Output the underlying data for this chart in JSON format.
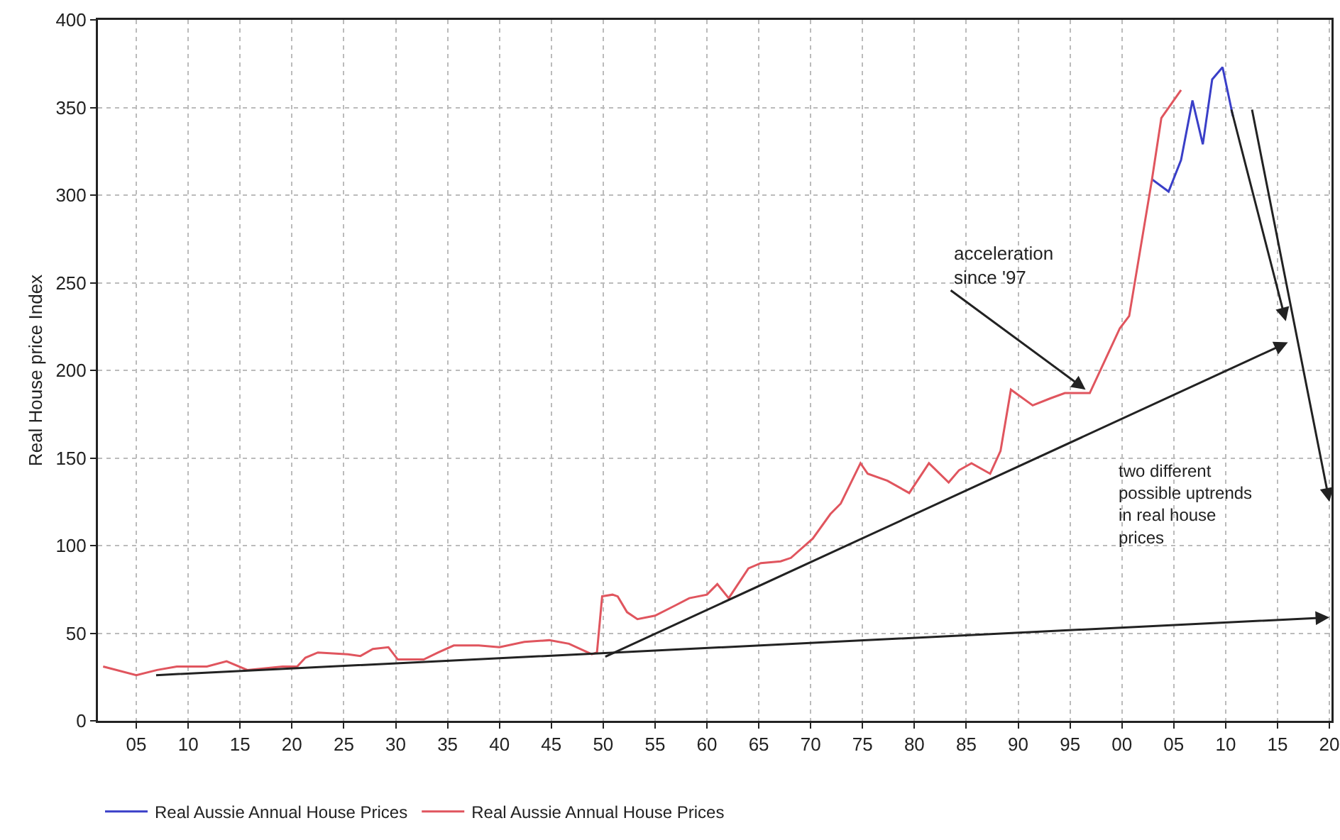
{
  "chart_data": {
    "type": "line",
    "ylabel": "Real House price Index",
    "xlim": [
      1901.3,
      2020.2
    ],
    "xticks": [
      {
        "value": 1905,
        "label": "05"
      },
      {
        "value": 1910,
        "label": "10"
      },
      {
        "value": 1915,
        "label": "15"
      },
      {
        "value": 1920,
        "label": "20"
      },
      {
        "value": 1925,
        "label": "25"
      },
      {
        "value": 1930,
        "label": "30"
      },
      {
        "value": 1935,
        "label": "35"
      },
      {
        "value": 1940,
        "label": "40"
      },
      {
        "value": 1945,
        "label": "45"
      },
      {
        "value": 1950,
        "label": "50"
      },
      {
        "value": 1955,
        "label": "55"
      },
      {
        "value": 1960,
        "label": "60"
      },
      {
        "value": 1965,
        "label": "65"
      },
      {
        "value": 1970,
        "label": "70"
      },
      {
        "value": 1975,
        "label": "75"
      },
      {
        "value": 1980,
        "label": "80"
      },
      {
        "value": 1985,
        "label": "85"
      },
      {
        "value": 1990,
        "label": "90"
      },
      {
        "value": 1995,
        "label": "95"
      },
      {
        "value": 2000,
        "label": "00"
      },
      {
        "value": 2005,
        "label": "05"
      },
      {
        "value": 2010,
        "label": "10"
      },
      {
        "value": 2015,
        "label": "15"
      },
      {
        "value": 2020,
        "label": "20"
      }
    ],
    "ylim": [
      0,
      400
    ],
    "yticks": [
      0,
      50,
      100,
      150,
      200,
      250,
      300,
      350,
      400
    ],
    "grid": true,
    "legend": "bottom left",
    "marker": "none",
    "line_style": "solid",
    "series": [
      {
        "name": "Real Aussie Annual House Prices",
        "color": "#3a3fc8",
        "x": [
          2002.9,
          2004.5,
          2005.7,
          2006.8,
          2007.8,
          2008.7,
          2009.7,
          2010.7
        ],
        "values": [
          309,
          302,
          320,
          354,
          329,
          366,
          373,
          345
        ]
      },
      {
        "name": "Real Aussie Annual House Prices",
        "color": "#e0555e",
        "x": [
          1901.8,
          1905,
          1907,
          1908.9,
          1911.8,
          1913.7,
          1915.7,
          1919.1,
          1920.5,
          1921.3,
          1922.5,
          1925.4,
          1926.6,
          1927.8,
          1929.3,
          1930.2,
          1932.7,
          1934.1,
          1935.6,
          1938,
          1940,
          1942.4,
          1944.8,
          1946.7,
          1948.9,
          1949.4,
          1949.9,
          1950.9,
          1951.4,
          1952.3,
          1953.3,
          1955,
          1957,
          1958.3,
          1960,
          1961,
          1962.1,
          1964,
          1965.2,
          1967.1,
          1968.1,
          1970.2,
          1971.9,
          1972.9,
          1974.8,
          1975.5,
          1977.4,
          1979.5,
          1981.4,
          1983.3,
          1984.3,
          1985.5,
          1987.3,
          1988.3,
          1989.3,
          1991.4,
          1993.1,
          1994.5,
          1996.9,
          1999.8,
          2000.7,
          2002.9,
          2003.8,
          2005.7
        ],
        "values": [
          31,
          26,
          29,
          31,
          31,
          34,
          29,
          31,
          31,
          36,
          39,
          38,
          37,
          41,
          42,
          35,
          35,
          39,
          43,
          43,
          42,
          45,
          46,
          44,
          38,
          39,
          71,
          72,
          71,
          62,
          58,
          60,
          66,
          70,
          72,
          78,
          70,
          87,
          90,
          91,
          93,
          104,
          118,
          124,
          147,
          141,
          137,
          130,
          147,
          136,
          143,
          147,
          141,
          154,
          189,
          180,
          184,
          187,
          187,
          224,
          231,
          309,
          344,
          360
        ]
      }
    ],
    "annotations": [
      {
        "text": "acceleration\nsince '97",
        "x": 1996.5,
        "y": 189
      },
      "two different\npossible uptrends\nin real house\nprices"
    ]
  }
}
